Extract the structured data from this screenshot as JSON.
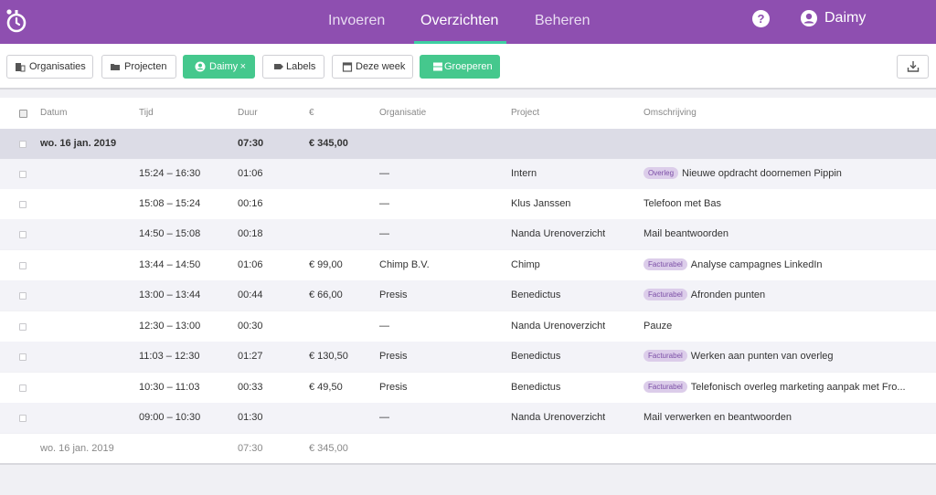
{
  "nav": {
    "items": [
      {
        "label": "Invoeren",
        "active": false
      },
      {
        "label": "Overzichten",
        "active": true
      },
      {
        "label": "Beheren",
        "active": false
      }
    ],
    "help_icon": "question-circle-icon",
    "user_name": "Daimy",
    "colors": {
      "bar": "#8e4fb0",
      "active_underline": "#3ed0a2"
    }
  },
  "toolbar": {
    "organisaties": "Organisaties",
    "projecten": "Projecten",
    "user_filter": "Daimy",
    "user_filter_remove": "×",
    "labels": "Labels",
    "period": "Deze week",
    "group": "Groeperen",
    "colors": {
      "green": "#45c88d"
    }
  },
  "table": {
    "headers": {
      "date": "Datum",
      "time": "Tijd",
      "duration": "Duur",
      "amount": "€",
      "organisation": "Organisatie",
      "project": "Project",
      "description": "Omschrijving"
    },
    "group": {
      "date": "wo. 16 jan. 2019",
      "duration": "07:30",
      "amount": "€ 345,00"
    },
    "rows": [
      {
        "time": "15:24 – 16:30",
        "duration": "01:06",
        "amount": "",
        "organisation": "—",
        "project": "Intern",
        "tag": "Overleg",
        "description": "Nieuwe opdracht doornemen Pippin"
      },
      {
        "time": "15:08 – 15:24",
        "duration": "00:16",
        "amount": "",
        "organisation": "—",
        "project": "Klus Janssen",
        "tag": "",
        "description": "Telefoon met Bas"
      },
      {
        "time": "14:50 – 15:08",
        "duration": "00:18",
        "amount": "",
        "organisation": "—",
        "project": "Nanda Urenoverzicht",
        "tag": "",
        "description": "Mail beantwoorden"
      },
      {
        "time": "13:44 – 14:50",
        "duration": "01:06",
        "amount": "€ 99,00",
        "organisation": "Chimp B.V.",
        "project": "Chimp",
        "tag": "Facturabel",
        "description": "Analyse campagnes LinkedIn"
      },
      {
        "time": "13:00 – 13:44",
        "duration": "00:44",
        "amount": "€ 66,00",
        "organisation": "Presis",
        "project": "Benedictus",
        "tag": "Facturabel",
        "description": "Afronden punten"
      },
      {
        "time": "12:30 – 13:00",
        "duration": "00:30",
        "amount": "",
        "organisation": "—",
        "project": "Nanda Urenoverzicht",
        "tag": "",
        "description": "Pauze"
      },
      {
        "time": "11:03 – 12:30",
        "duration": "01:27",
        "amount": "€ 130,50",
        "organisation": "Presis",
        "project": "Benedictus",
        "tag": "Facturabel",
        "description": "Werken aan punten van overleg"
      },
      {
        "time": "10:30 – 11:03",
        "duration": "00:33",
        "amount": "€ 49,50",
        "organisation": "Presis",
        "project": "Benedictus",
        "tag": "Facturabel",
        "description": "Telefonisch overleg marketing aanpak met Fro..."
      },
      {
        "time": "09:00 – 10:30",
        "duration": "01:30",
        "amount": "",
        "organisation": "—",
        "project": "Nanda Urenoverzicht",
        "tag": "",
        "description": "Mail verwerken en beantwoorden"
      }
    ],
    "footer": {
      "date": "wo. 16 jan. 2019",
      "duration": "07:30",
      "amount": "€ 345,00"
    }
  }
}
